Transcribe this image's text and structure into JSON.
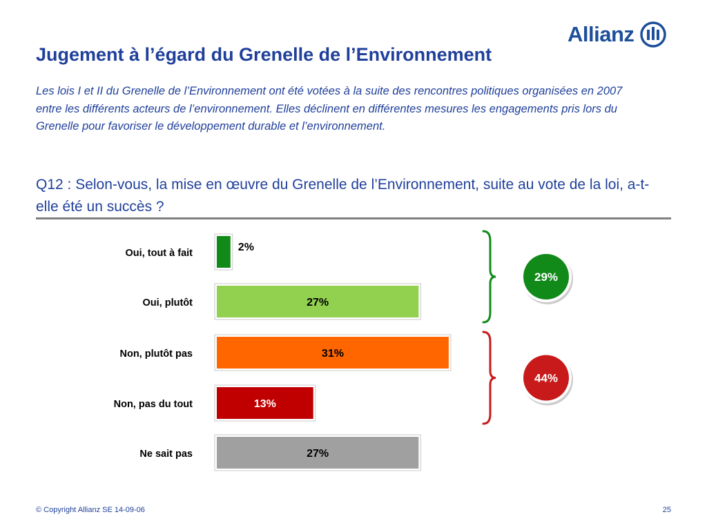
{
  "brand": {
    "name": "Allianz",
    "color": "#1d4f9b"
  },
  "title": "Jugement à l’égard du Grenelle de l’Environnement",
  "intro": "Les lois I et II du Grenelle de l’Environnement ont été votées à la suite des rencontres politiques organisées en 2007 entre les différents acteurs de l’environnement. Elles déclinent en différentes mesures les engagements pris lors du Grenelle pour favoriser le développement durable et l’environnement.",
  "question": "Q12 : Selon-vous, la mise en œuvre du Grenelle de l’Environnement, suite au vote de la loi, a-t-elle été un succès ?",
  "chart_data": {
    "type": "bar",
    "orientation": "horizontal",
    "categories": [
      "Oui, tout à fait",
      "Oui, plutôt",
      "Non, plutôt pas",
      "Non, pas du tout",
      "Ne sait pas"
    ],
    "values": [
      2,
      27,
      31,
      13,
      27
    ],
    "value_labels": [
      "2%",
      "27%",
      "31%",
      "13%",
      "27%"
    ],
    "colors": [
      "#118a1a",
      "#92d050",
      "#ff6600",
      "#c00000",
      "#a0a0a0"
    ],
    "label_colors": [
      "#000000",
      "#000000",
      "#000000",
      "#ffffff",
      "#000000"
    ],
    "groups": [
      {
        "label": "29%",
        "members": [
          0,
          1
        ],
        "color": "#118a1a"
      },
      {
        "label": "44%",
        "members": [
          2,
          3
        ],
        "color": "#c81a1a"
      }
    ]
  },
  "footer": {
    "copyright": "© Copyright Allianz SE 14-09-06",
    "page": "25"
  }
}
